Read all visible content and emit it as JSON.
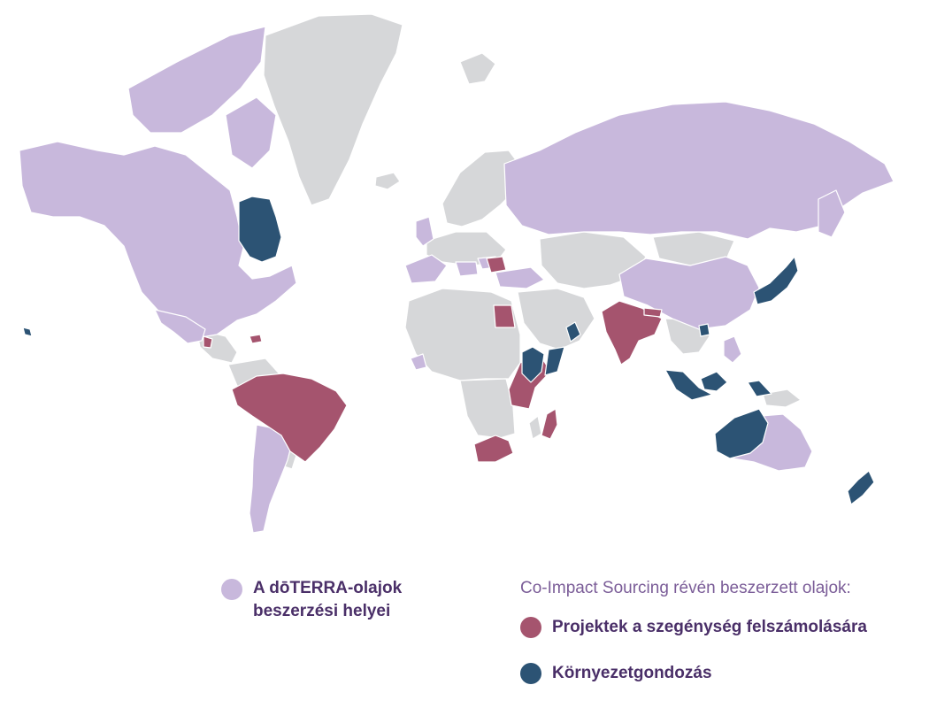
{
  "colors": {
    "ocean": "#ffffff",
    "land_other": "#d6d7d9",
    "sourcing": "#c8b8dc",
    "poverty": "#a5546e",
    "environment": "#2c5374",
    "text_dark": "#4a2f68",
    "text_light": "#7b5d98"
  },
  "legend": {
    "sourcing_label_line1": "A dōTERRA-olajok",
    "sourcing_label_line2": "beszerzési helyei",
    "co_impact_heading": "Co-Impact Sourcing révén beszerzett olajok:",
    "poverty_label": "Projektek a szegénység felszámolására",
    "environment_label": "Környezetgondozás"
  }
}
